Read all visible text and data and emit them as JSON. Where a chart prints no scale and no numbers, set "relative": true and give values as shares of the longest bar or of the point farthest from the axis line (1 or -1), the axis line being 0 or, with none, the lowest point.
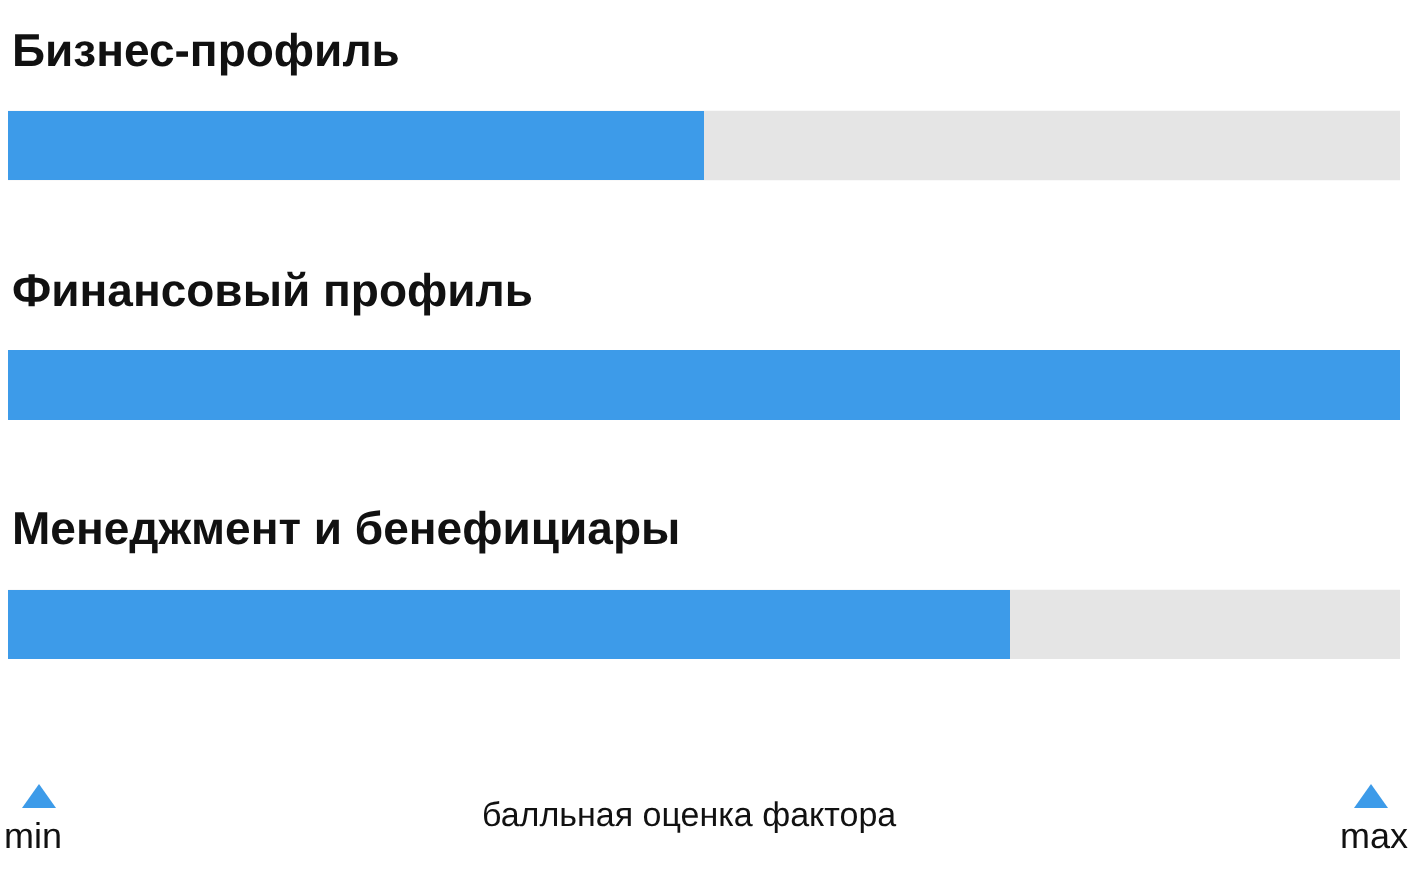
{
  "chart_data": {
    "type": "bar",
    "orientation": "horizontal",
    "relative": true,
    "categories": [
      "Бизнес-профиль",
      "Финансовый профиль",
      "Менеджмент и бенефициары"
    ],
    "values": [
      0.5,
      1,
      0.72
    ],
    "color": "#3d9be9",
    "xlabel": "балльная оценка фактора",
    "annotations": [
      "min",
      "max"
    ]
  }
}
